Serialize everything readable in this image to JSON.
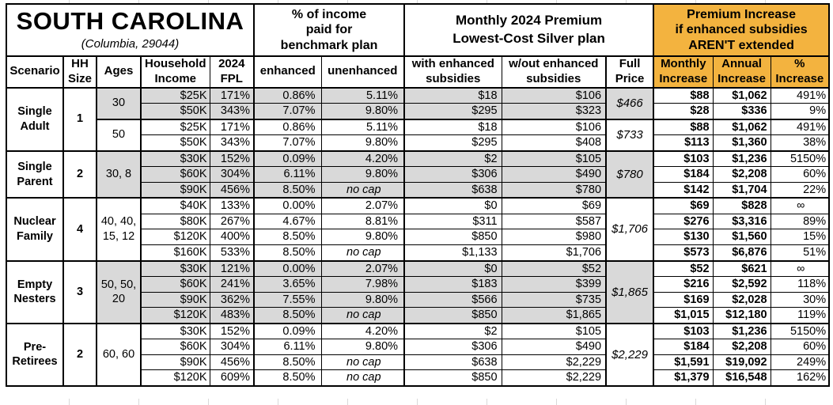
{
  "title": {
    "main": "SOUTH CAROLINA",
    "sub": "(Columbia, 29044)"
  },
  "header_groups": {
    "benchmark": "% of income\npaid for\nbenchmark plan",
    "premium": "Monthly 2024 Premium\nLowest-Cost Silver plan",
    "increase": "Premium Increase\nif enhanced subsidies\nAREN'T extended"
  },
  "columns": [
    "Scenario",
    "HH\nSize",
    "Ages",
    "Household\nIncome",
    "2024\nFPL",
    "enhanced",
    "unenhanced",
    "with enhanced\nsubsidies",
    "w/out enhanced\nsubsidies",
    "Full\nPrice",
    "Monthly\nIncrease",
    "Annual\nIncrease",
    "%\nIncrease"
  ],
  "row_value_order": [
    "household_income",
    "fpl_pct",
    "enhanced_pct",
    "unenhanced_pct",
    "with_enhanced_subsidies",
    "without_enhanced_subsidies",
    "monthly_increase",
    "annual_increase",
    "pct_increase"
  ],
  "groups": [
    {
      "scenario": "Single\nAdult",
      "hh_size": "1",
      "subgroups": [
        {
          "ages": "30",
          "shaded": true,
          "full_price": "$466",
          "rows": [
            [
              "$25K",
              "171%",
              "0.86%",
              "5.11%",
              "$18",
              "$106",
              "$88",
              "$1,062",
              "491%"
            ],
            [
              "$50K",
              "343%",
              "7.07%",
              "9.80%",
              "$295",
              "$323",
              "$28",
              "$336",
              "9%"
            ]
          ]
        },
        {
          "ages": "50",
          "shaded": false,
          "full_price": "$733",
          "rows": [
            [
              "$25K",
              "171%",
              "0.86%",
              "5.11%",
              "$18",
              "$106",
              "$88",
              "$1,062",
              "491%"
            ],
            [
              "$50K",
              "343%",
              "7.07%",
              "9.80%",
              "$295",
              "$408",
              "$113",
              "$1,360",
              "38%"
            ]
          ]
        }
      ]
    },
    {
      "scenario": "Single\nParent",
      "hh_size": "2",
      "subgroups": [
        {
          "ages": "30, 8",
          "shaded": true,
          "full_price": "$780",
          "rows": [
            [
              "$30K",
              "152%",
              "0.09%",
              "4.20%",
              "$2",
              "$105",
              "$103",
              "$1,236",
              "5150%"
            ],
            [
              "$60K",
              "304%",
              "6.11%",
              "9.80%",
              "$306",
              "$490",
              "$184",
              "$2,208",
              "60%"
            ],
            [
              "$90K",
              "456%",
              "8.50%",
              "no cap",
              "$638",
              "$780",
              "$142",
              "$1,704",
              "22%"
            ]
          ]
        }
      ]
    },
    {
      "scenario": "Nuclear\nFamily",
      "hh_size": "4",
      "subgroups": [
        {
          "ages": "40, 40,\n15, 12",
          "shaded": false,
          "full_price": "$1,706",
          "rows": [
            [
              "$40K",
              "133%",
              "0.00%",
              "2.07%",
              "$0",
              "$69",
              "$69",
              "$828",
              "∞"
            ],
            [
              "$80K",
              "267%",
              "4.67%",
              "8.81%",
              "$311",
              "$587",
              "$276",
              "$3,316",
              "89%"
            ],
            [
              "$120K",
              "400%",
              "8.50%",
              "9.80%",
              "$850",
              "$980",
              "$130",
              "$1,560",
              "15%"
            ],
            [
              "$160K",
              "533%",
              "8.50%",
              "no cap",
              "$1,133",
              "$1,706",
              "$573",
              "$6,876",
              "51%"
            ]
          ]
        }
      ]
    },
    {
      "scenario": "Empty\nNesters",
      "hh_size": "3",
      "subgroups": [
        {
          "ages": "50, 50,\n20",
          "shaded": true,
          "full_price": "$1,865",
          "rows": [
            [
              "$30K",
              "121%",
              "0.00%",
              "2.07%",
              "$0",
              "$52",
              "$52",
              "$621",
              "∞"
            ],
            [
              "$60K",
              "241%",
              "3.65%",
              "7.98%",
              "$183",
              "$399",
              "$216",
              "$2,592",
              "118%"
            ],
            [
              "$90K",
              "362%",
              "7.55%",
              "9.80%",
              "$566",
              "$735",
              "$169",
              "$2,028",
              "30%"
            ],
            [
              "$120K",
              "483%",
              "8.50%",
              "no cap",
              "$850",
              "$1,865",
              "$1,015",
              "$12,180",
              "119%"
            ]
          ]
        }
      ]
    },
    {
      "scenario": "Pre-\nRetirees",
      "hh_size": "2",
      "subgroups": [
        {
          "ages": "60, 60",
          "shaded": false,
          "full_price": "$2,229",
          "rows": [
            [
              "$30K",
              "152%",
              "0.09%",
              "4.20%",
              "$2",
              "$105",
              "$103",
              "$1,236",
              "5150%"
            ],
            [
              "$60K",
              "304%",
              "6.11%",
              "9.80%",
              "$306",
              "$490",
              "$184",
              "$2,208",
              "60%"
            ],
            [
              "$90K",
              "456%",
              "8.50%",
              "no cap",
              "$638",
              "$2,229",
              "$1,591",
              "$19,092",
              "249%"
            ],
            [
              "$120K",
              "609%",
              "8.50%",
              "no cap",
              "$850",
              "$2,229",
              "$1,379",
              "$16,548",
              "162%"
            ]
          ]
        }
      ]
    }
  ],
  "colors": {
    "header_accent": "#F3B33F",
    "row_shade": "#D9D9D9",
    "border": "#000000",
    "background": "#FFFFFF"
  }
}
